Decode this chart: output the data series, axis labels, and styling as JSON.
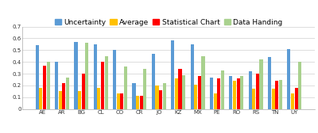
{
  "categories": [
    "AE",
    "AR",
    "BG",
    "CL",
    "CO",
    "CR",
    "JO",
    "KZ",
    "MX",
    "PE",
    "RO",
    "RS",
    "TN",
    "UY"
  ],
  "series": {
    "Uncertainty": [
      0.54,
      0.4,
      0.57,
      0.55,
      0.5,
      0.22,
      0.47,
      0.58,
      0.55,
      0.27,
      0.28,
      0.32,
      0.44,
      0.51
    ],
    "Average": [
      0.18,
      0.15,
      0.15,
      0.18,
      0.13,
      0.11,
      0.2,
      0.26,
      0.21,
      0.13,
      0.24,
      0.17,
      0.17,
      0.13
    ],
    "Statistical Chart": [
      0.37,
      0.22,
      0.3,
      0.4,
      0.13,
      0.11,
      0.16,
      0.34,
      0.28,
      0.26,
      0.26,
      0.3,
      0.24,
      0.18
    ],
    "Data Handing": [
      0.4,
      0.27,
      0.56,
      0.45,
      0.36,
      0.34,
      0.22,
      0.29,
      0.45,
      0.33,
      0.28,
      0.42,
      0.25,
      0.4
    ]
  },
  "colors": {
    "Uncertainty": "#5B9BD5",
    "Average": "#FFC000",
    "Statistical Chart": "#FF0000",
    "Data Handing": "#A9D18E"
  },
  "ylim": [
    0,
    0.7
  ],
  "yticks": [
    0.0,
    0.1,
    0.2,
    0.3,
    0.4,
    0.5,
    0.6,
    0.7
  ],
  "legend_order": [
    "Uncertainty",
    "Average",
    "Statistical Chart",
    "Data Handing"
  ],
  "bar_width": 0.19,
  "background_color": "#ffffff",
  "grid_color": "#d0d0d0",
  "axis_color": "#aaaaaa",
  "tick_fontsize": 5.0,
  "legend_fontsize": 6.5
}
